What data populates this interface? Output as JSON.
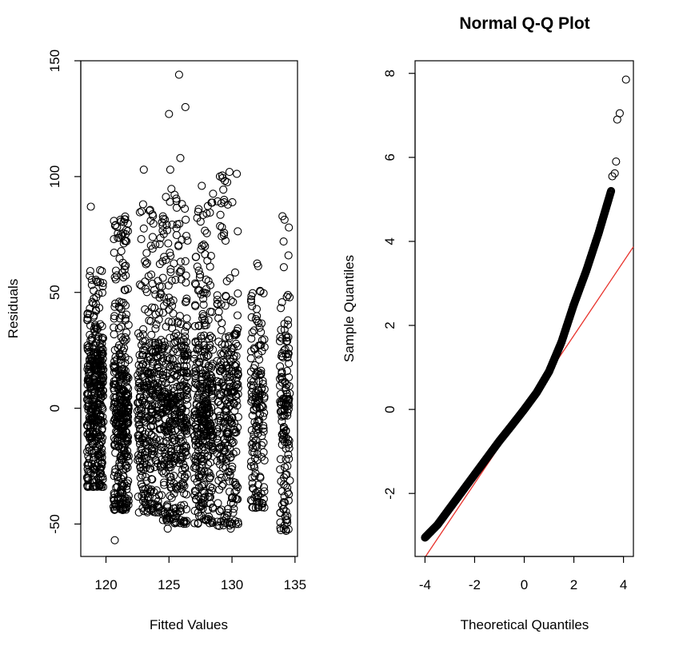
{
  "chart_data": [
    {
      "type": "scatter",
      "title": "",
      "xlabel": "Fitted Values",
      "ylabel": "Residuals",
      "xlim": [
        118,
        135.2
      ],
      "ylim": [
        -64,
        150
      ],
      "xticks": [
        120,
        125,
        130,
        135
      ],
      "yticks": [
        -50,
        0,
        50,
        100,
        150
      ],
      "xtick_labels": [
        "120",
        "125",
        "130",
        "135"
      ],
      "ytick_labels": [
        "-50",
        "0",
        "50",
        "100",
        "150"
      ],
      "grid": false,
      "legend": "none",
      "marker": "open circle",
      "clusters": [
        {
          "x": 118.5,
          "x_end": 119.8,
          "n": 400,
          "y_low": -34,
          "y_high": 60
        },
        {
          "x": 120.6,
          "x_end": 121.8,
          "n": 380,
          "y_low": -44,
          "y_high": 86
        },
        {
          "x": 122.5,
          "x_end": 124.5,
          "n": 360,
          "y_low": -45,
          "y_high": 90
        },
        {
          "x": 124.5,
          "x_end": 126.5,
          "n": 420,
          "y_low": -50,
          "y_high": 95
        },
        {
          "x": 127.0,
          "x_end": 128.5,
          "n": 360,
          "y_low": -50,
          "y_high": 96
        },
        {
          "x": 128.8,
          "x_end": 130.5,
          "n": 280,
          "y_low": -51,
          "y_high": 102
        },
        {
          "x": 131.5,
          "x_end": 132.6,
          "n": 160,
          "y_low": -43,
          "y_high": 65
        },
        {
          "x": 133.8,
          "x_end": 134.6,
          "n": 150,
          "y_low": -53,
          "y_high": 83
        }
      ],
      "outliers": [
        {
          "x": 125.8,
          "y": 144
        },
        {
          "x": 125.0,
          "y": 127
        },
        {
          "x": 126.3,
          "y": 130
        },
        {
          "x": 123.0,
          "y": 103
        },
        {
          "x": 125.1,
          "y": 103
        },
        {
          "x": 125.9,
          "y": 108
        },
        {
          "x": 129.8,
          "y": 102
        },
        {
          "x": 127.6,
          "y": 96
        },
        {
          "x": 118.8,
          "y": 87
        },
        {
          "x": 120.7,
          "y": -57
        },
        {
          "x": 124.9,
          "y": -52
        },
        {
          "x": 134.1,
          "y": -52
        },
        {
          "x": 134.3,
          "y": -53
        },
        {
          "x": 130.5,
          "y": -50
        },
        {
          "x": 129.9,
          "y": -52
        }
      ]
    },
    {
      "type": "scatter",
      "title": "Normal Q-Q Plot",
      "xlabel": "Theoretical Quantiles",
      "ylabel": "Sample Quantiles",
      "xlim": [
        -4.4,
        4.4
      ],
      "ylim": [
        -3.5,
        8.3
      ],
      "xticks": [
        -4,
        -2,
        0,
        2,
        4
      ],
      "yticks": [
        -2,
        0,
        2,
        4,
        6,
        8
      ],
      "xtick_labels": [
        "-4",
        "-2",
        "0",
        "2",
        "4"
      ],
      "ytick_labels": [
        "-2",
        "0",
        "2",
        "4",
        "6",
        "8"
      ],
      "grid": false,
      "legend": "none",
      "marker": "open circle",
      "reference_line": {
        "color": "#e8322b",
        "intercept": 0.0,
        "slope": 0.88
      },
      "sample_curve": [
        [
          -4.0,
          -3.05
        ],
        [
          -3.5,
          -2.75
        ],
        [
          -3.0,
          -2.35
        ],
        [
          -2.5,
          -1.95
        ],
        [
          -2.0,
          -1.55
        ],
        [
          -1.5,
          -1.15
        ],
        [
          -1.0,
          -0.75
        ],
        [
          -0.5,
          -0.38
        ],
        [
          0.0,
          0.0
        ],
        [
          0.5,
          0.4
        ],
        [
          1.0,
          0.9
        ],
        [
          1.5,
          1.6
        ],
        [
          2.0,
          2.5
        ],
        [
          2.5,
          3.3
        ],
        [
          3.0,
          4.2
        ],
        [
          3.5,
          5.2
        ]
      ],
      "upper_tail": [
        [
          3.55,
          5.55
        ],
        [
          3.65,
          5.62
        ],
        [
          3.7,
          5.9
        ],
        [
          3.75,
          6.9
        ],
        [
          3.85,
          7.05
        ],
        [
          4.1,
          7.85
        ]
      ]
    }
  ]
}
